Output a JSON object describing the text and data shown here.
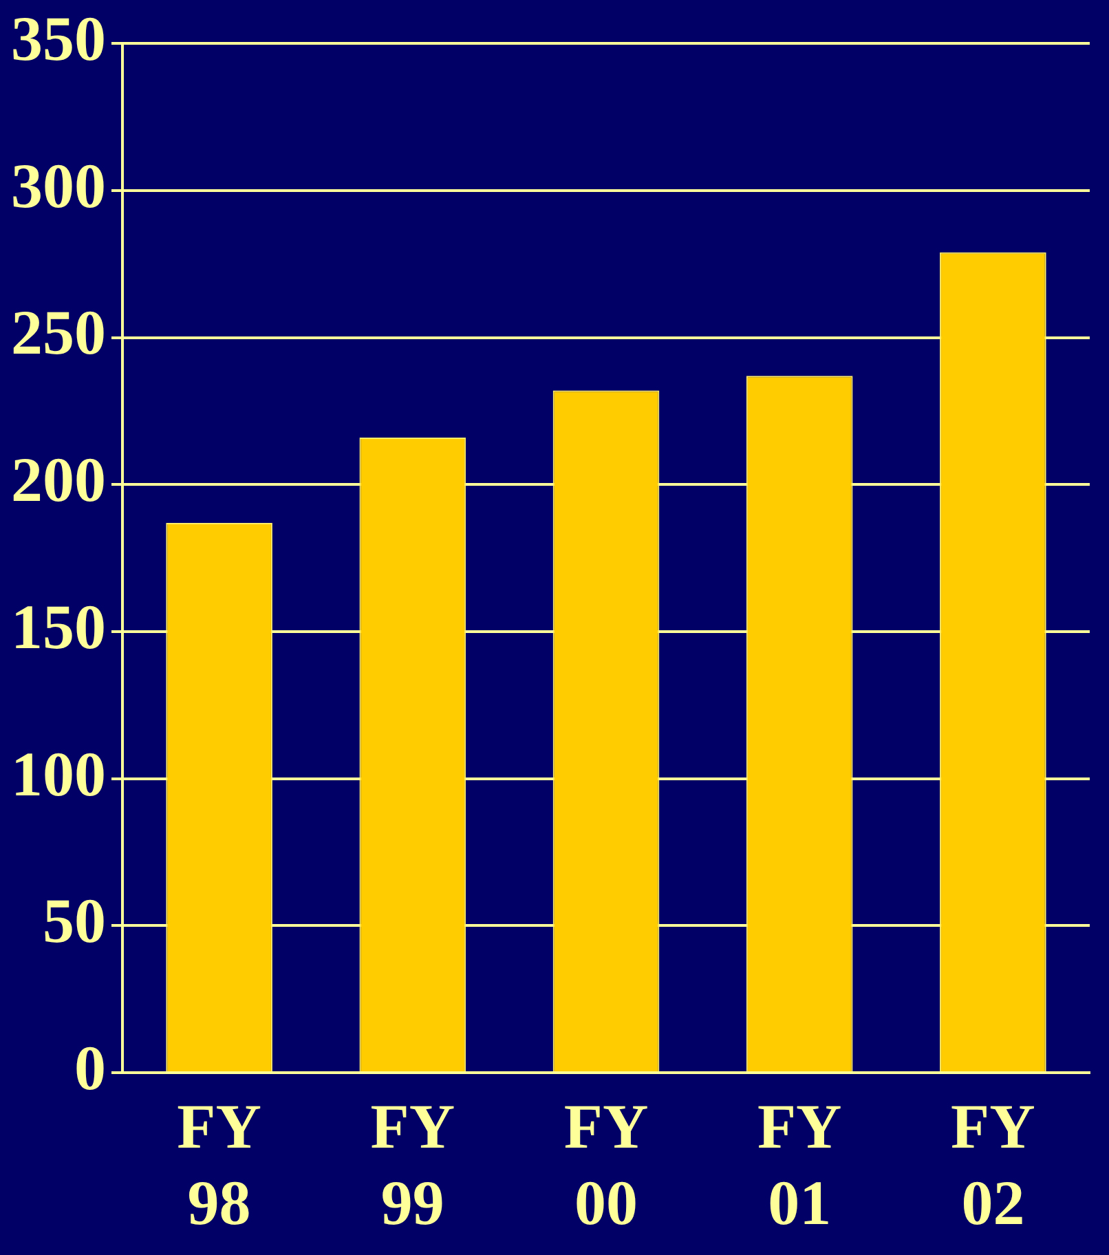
{
  "chart_data": {
    "type": "bar",
    "categories": [
      "FY 98",
      "FY 99",
      "FY 00",
      "FY 01",
      "FY 02"
    ],
    "values": [
      187,
      216,
      232,
      237,
      279
    ],
    "color": "#ffcc00",
    "ylim": [
      0,
      350
    ],
    "yticks": [
      0,
      50,
      100,
      150,
      200,
      250,
      300,
      350
    ],
    "grid": "y",
    "legend": false
  }
}
